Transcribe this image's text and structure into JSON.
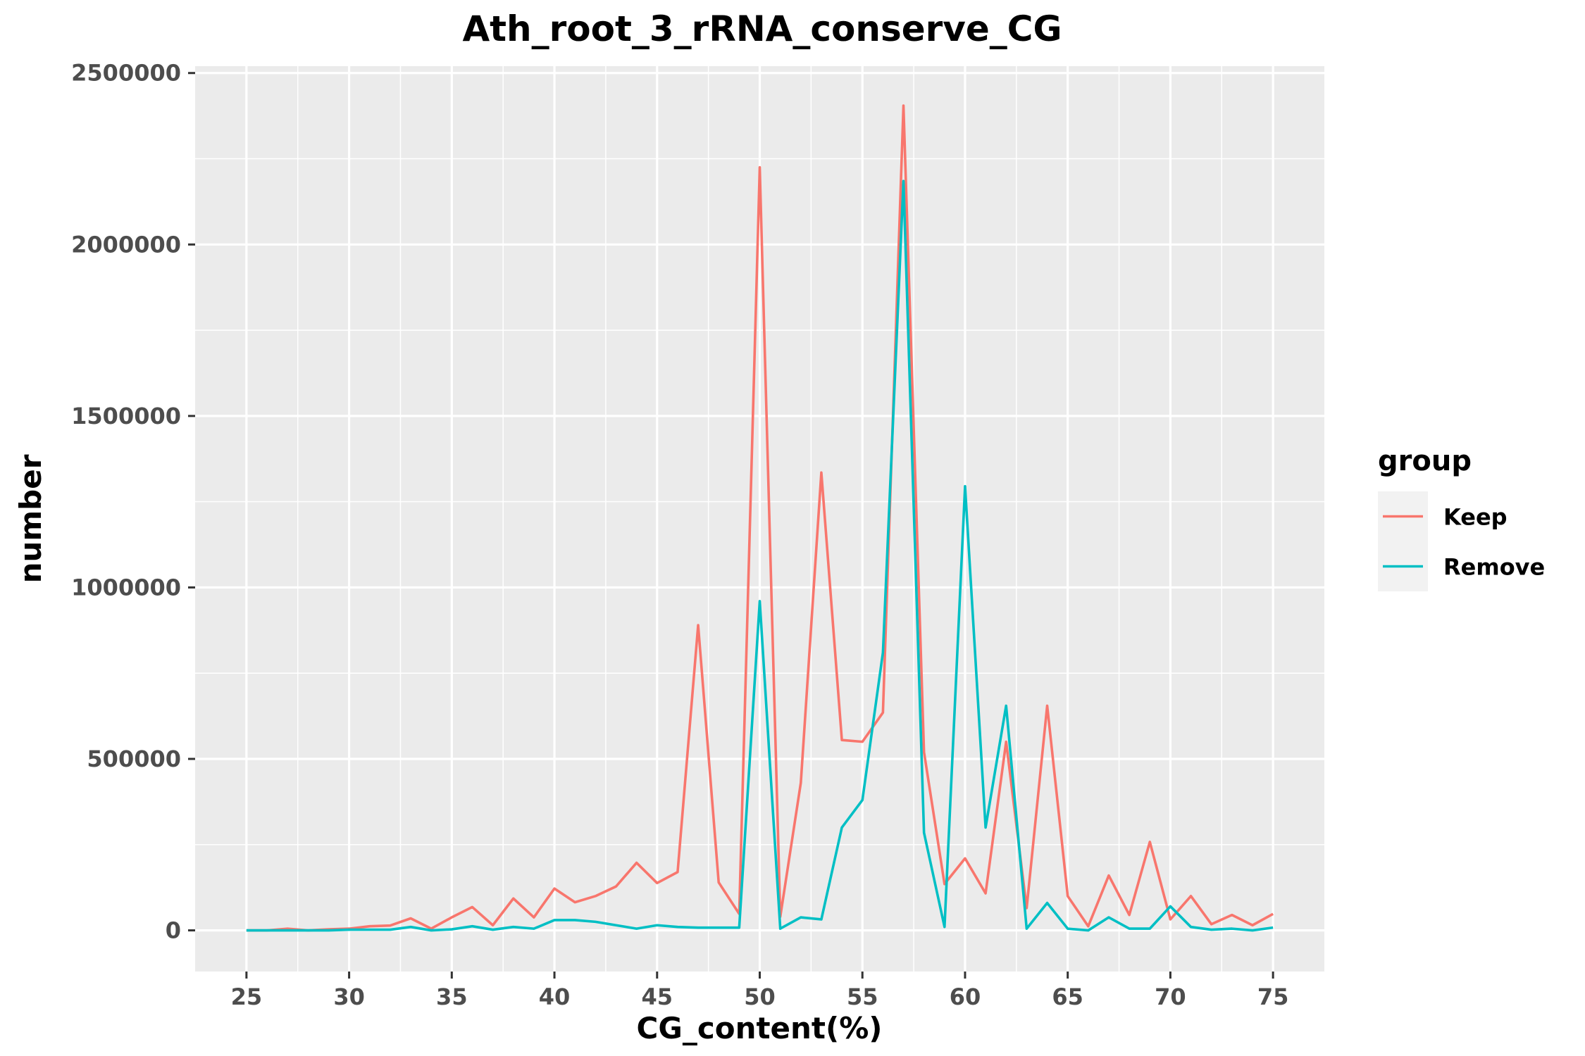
{
  "chart_data": {
    "type": "line",
    "title": "Ath_root_3_rRNA_conserve_CG",
    "xlabel": "CG_content(%)",
    "ylabel": "number",
    "xlim": [
      22.5,
      77.5
    ],
    "ylim": [
      -120000,
      2520000
    ],
    "x_ticks": [
      25,
      30,
      35,
      40,
      45,
      50,
      55,
      60,
      65,
      70,
      75
    ],
    "y_ticks": [
      0,
      500000,
      1000000,
      1500000,
      2000000,
      2500000
    ],
    "y_tick_labels": [
      "0",
      "500000",
      "1000000",
      "1500000",
      "2000000",
      "2500000"
    ],
    "grid": true,
    "legend_title": "group",
    "legend_position": "right",
    "x": [
      25,
      26,
      27,
      28,
      29,
      30,
      31,
      32,
      33,
      34,
      35,
      36,
      37,
      38,
      39,
      40,
      41,
      42,
      43,
      44,
      45,
      46,
      47,
      48,
      49,
      50,
      51,
      52,
      53,
      54,
      55,
      56,
      57,
      58,
      59,
      60,
      61,
      62,
      63,
      64,
      65,
      66,
      67,
      68,
      69,
      70,
      71,
      72,
      73,
      74,
      75
    ],
    "series": [
      {
        "name": "Keep",
        "color": "#F8766D",
        "values": [
          0,
          0,
          5000,
          0,
          3000,
          5000,
          12000,
          14000,
          35000,
          5000,
          38000,
          68000,
          15000,
          93000,
          38000,
          122000,
          82000,
          100000,
          128000,
          197000,
          138000,
          170000,
          890000,
          140000,
          48000,
          2225000,
          40000,
          430000,
          1335000,
          555000,
          550000,
          635000,
          2405000,
          520000,
          135000,
          210000,
          108000,
          550000,
          65000,
          655000,
          100000,
          12000,
          160000,
          45000,
          258000,
          32000,
          100000,
          18000,
          45000,
          15000,
          48000
        ]
      },
      {
        "name": "Remove",
        "color": "#00BFC4",
        "values": [
          0,
          0,
          0,
          0,
          0,
          2000,
          2000,
          2000,
          10000,
          0,
          3000,
          12000,
          2000,
          10000,
          5000,
          30000,
          30000,
          25000,
          15000,
          5000,
          15000,
          10000,
          8000,
          8000,
          8000,
          960000,
          5000,
          38000,
          32000,
          300000,
          380000,
          810000,
          2185000,
          285000,
          10000,
          1295000,
          300000,
          655000,
          5000,
          80000,
          5000,
          0,
          38000,
          5000,
          5000,
          70000,
          10000,
          2000,
          5000,
          0,
          8000
        ]
      }
    ]
  }
}
